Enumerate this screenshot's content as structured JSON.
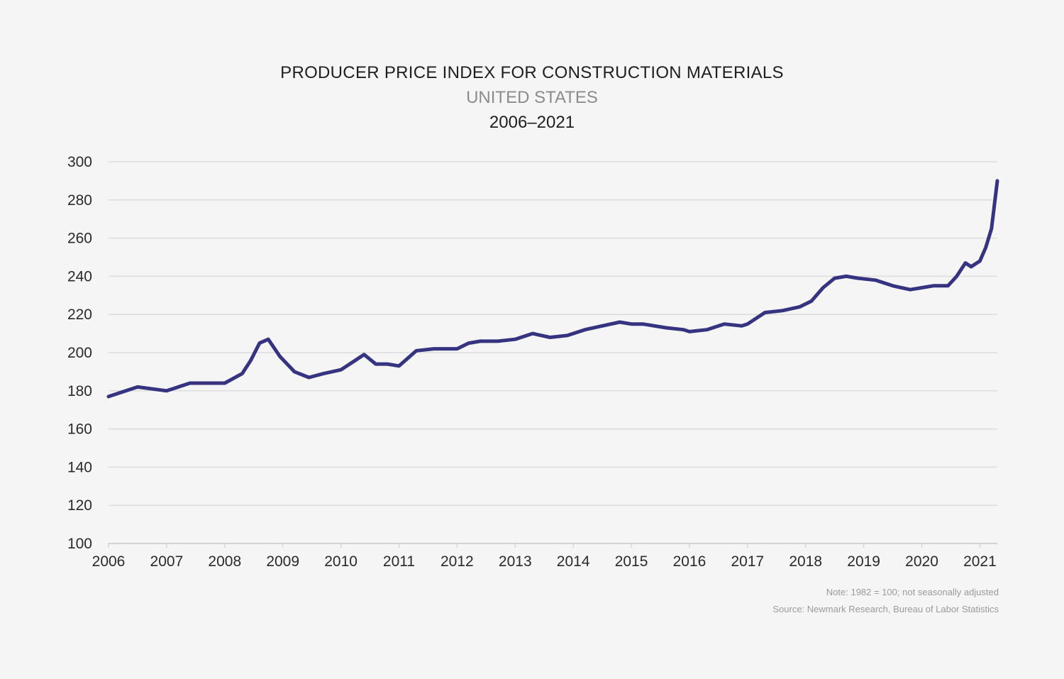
{
  "chart_data": {
    "type": "line",
    "title": "PRODUCER PRICE INDEX FOR CONSTRUCTION MATERIALS",
    "subtitle": "UNITED STATES",
    "date_range": "2006–2021",
    "xlabel": "",
    "ylabel": "",
    "ylim": [
      100,
      300
    ],
    "xlim": [
      2006,
      2021.3
    ],
    "y_ticks": [
      "300",
      "280",
      "260",
      "240",
      "220",
      "200",
      "180",
      "160",
      "140",
      "120",
      "100"
    ],
    "x_ticks": [
      "2006",
      "2007",
      "2008",
      "2009",
      "2010",
      "2011",
      "2012",
      "2013",
      "2014",
      "2015",
      "2016",
      "2017",
      "2018",
      "2019",
      "2020",
      "2021"
    ],
    "grid": true,
    "line_color": "#363381",
    "series": [
      {
        "x": [
          2006.0,
          2006.5,
          2007.0,
          2007.1,
          2007.4,
          2007.6,
          2008.0,
          2008.3,
          2008.45,
          2008.6,
          2008.75,
          2008.95,
          2009.2,
          2009.45,
          2009.7,
          2010.0,
          2010.2,
          2010.4,
          2010.6,
          2010.8,
          2011.0,
          2011.3,
          2011.6,
          2011.9,
          2012.0,
          2012.2,
          2012.4,
          2012.7,
          2013.0,
          2013.3,
          2013.6,
          2013.9,
          2014.2,
          2014.5,
          2014.8,
          2015.0,
          2015.2,
          2015.6,
          2015.9,
          2016.0,
          2016.3,
          2016.6,
          2016.9,
          2017.0,
          2017.3,
          2017.6,
          2017.9,
          2018.1,
          2018.3,
          2018.5,
          2018.7,
          2018.9,
          2019.2,
          2019.5,
          2019.8,
          2020.0,
          2020.2,
          2020.45,
          2020.6,
          2020.75,
          2020.85,
          2021.0,
          2021.1,
          2021.2,
          2021.3
        ],
        "values": [
          177,
          182,
          180,
          181,
          184,
          184,
          184,
          189,
          196,
          205,
          207,
          198,
          190,
          187,
          189,
          191,
          195,
          199,
          194,
          194,
          193,
          201,
          202,
          202,
          202,
          205,
          206,
          206,
          207,
          210,
          208,
          209,
          212,
          214,
          216,
          215,
          215,
          213,
          212,
          211,
          212,
          215,
          214,
          215,
          221,
          222,
          224,
          227,
          234,
          239,
          240,
          239,
          238,
          235,
          233,
          234,
          235,
          235,
          240,
          247,
          245,
          248,
          255,
          265,
          290
        ]
      }
    ]
  },
  "footer": {
    "note": "Note: 1982 = 100; not seasonally adjusted",
    "source": "Source: Newmark Research, Bureau of Labor Statistics"
  }
}
